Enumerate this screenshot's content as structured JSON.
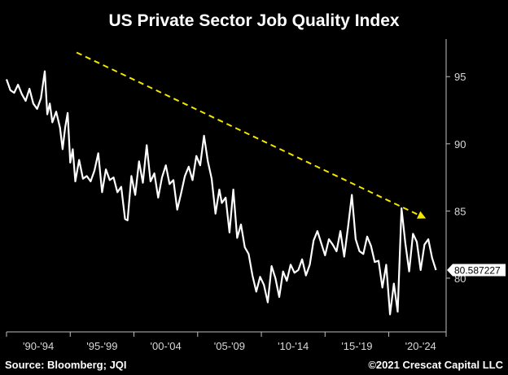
{
  "chart_data": {
    "type": "line",
    "title": "US Private Sector Job Quality Index",
    "xlabel": "",
    "ylabel": "",
    "x_range": [
      1990.0,
      2024.5
    ],
    "ylim": [
      76.0,
      97.8
    ],
    "y_ticks": [
      95,
      90,
      85,
      80
    ],
    "y_tick_labels": [
      "95",
      "90",
      "85",
      "80"
    ],
    "x_tick_labels": [
      "'90-'94",
      "'95-'99",
      "'00-'04",
      "'05-'09",
      "'10-'14",
      "'15-'19",
      "'20-'24"
    ],
    "x_tick_positions": [
      1990.0,
      1995.0,
      2000.0,
      2005.0,
      2010.0,
      2015.0,
      2020.0,
      2025.0
    ],
    "grid": false,
    "legend": "none",
    "last_value_label": "80.587227",
    "colors": {
      "background": "#000000",
      "line": "#ffffff",
      "trend": "#f2e600",
      "badge": "#ffffff"
    },
    "series": [
      {
        "x": [
          1990.0,
          1990.3,
          1990.6,
          1990.9,
          1991.2,
          1991.5,
          1991.8,
          1992.1,
          1992.4,
          1992.7,
          1993.0,
          1993.2,
          1993.4,
          1993.6,
          1993.9,
          1994.2,
          1994.4,
          1994.6,
          1994.8,
          1995.0,
          1995.2,
          1995.4,
          1995.7,
          1996.0,
          1996.3,
          1996.6,
          1996.9,
          1997.2,
          1997.5,
          1997.8,
          1998.1,
          1998.4,
          1998.7,
          1999.0,
          1999.3,
          1999.5,
          1999.8,
          2000.1,
          2000.4,
          2000.7,
          2001.0,
          2001.3,
          2001.6,
          2001.9,
          2002.2,
          2002.5,
          2002.8,
          2003.1,
          2003.4,
          2003.7,
          2004.0,
          2004.3,
          2004.6,
          2004.9,
          2005.2,
          2005.5,
          2005.8,
          2006.1,
          2006.4,
          2006.7,
          2006.9,
          2007.2,
          2007.5,
          2007.8,
          2008.1,
          2008.4,
          2008.7,
          2009.0,
          2009.3,
          2009.6,
          2009.9,
          2010.2,
          2010.5,
          2010.8,
          2011.1,
          2011.4,
          2011.7,
          2012.0,
          2012.3,
          2012.6,
          2012.9,
          2013.2,
          2013.5,
          2013.8,
          2014.1,
          2014.4,
          2014.7,
          2015.0,
          2015.3,
          2015.6,
          2015.9,
          2016.2,
          2016.5,
          2016.8,
          2017.1,
          2017.4,
          2017.7,
          2018.0,
          2018.3,
          2018.6,
          2018.9,
          2019.2,
          2019.5,
          2019.8,
          2020.1,
          2020.4,
          2020.7,
          2021.0,
          2021.3,
          2021.6,
          2021.9,
          2022.2,
          2022.5,
          2022.8,
          2023.1,
          2023.4,
          2023.7
        ],
        "values": [
          94.8,
          94.0,
          93.8,
          94.4,
          93.7,
          93.2,
          94.1,
          93.0,
          92.6,
          93.4,
          95.4,
          92.2,
          93.0,
          91.6,
          92.4,
          91.2,
          89.6,
          91.2,
          92.3,
          88.6,
          89.6,
          87.2,
          88.8,
          87.4,
          87.6,
          87.2,
          88.0,
          89.3,
          86.4,
          88.1,
          87.3,
          87.5,
          86.4,
          86.8,
          84.4,
          84.3,
          87.6,
          86.2,
          88.7,
          87.1,
          89.9,
          87.2,
          87.8,
          86.0,
          87.5,
          88.4,
          87.0,
          87.3,
          85.1,
          86.3,
          87.6,
          88.3,
          87.3,
          89.1,
          88.4,
          90.6,
          88.7,
          87.4,
          84.8,
          86.6,
          85.6,
          86.0,
          83.4,
          86.6,
          83.0,
          84.0,
          82.3,
          81.8,
          80.2,
          79.0,
          80.1,
          79.5,
          78.2,
          80.9,
          80.0,
          78.6,
          80.5,
          79.8,
          81.0,
          80.4,
          80.6,
          81.4,
          80.2,
          81.0,
          82.8,
          83.5,
          82.6,
          81.7,
          82.9,
          82.5,
          82.0,
          83.5,
          81.6,
          83.8,
          86.2,
          82.9,
          82.0,
          81.8,
          83.1,
          82.4,
          81.2,
          81.3,
          79.3,
          81.0,
          77.3,
          79.6,
          77.5,
          85.2,
          82.6,
          80.5,
          83.3,
          82.7,
          80.6,
          82.5,
          82.9,
          81.5,
          80.6
        ]
      }
    ],
    "trend_line": {
      "x": [
        1995.5,
        2022.8
      ],
      "y": [
        96.8,
        84.5
      ]
    }
  },
  "footer": {
    "source": "Source: Bloomberg; JQI",
    "credit": "©2021 Crescat Capital LLC"
  }
}
